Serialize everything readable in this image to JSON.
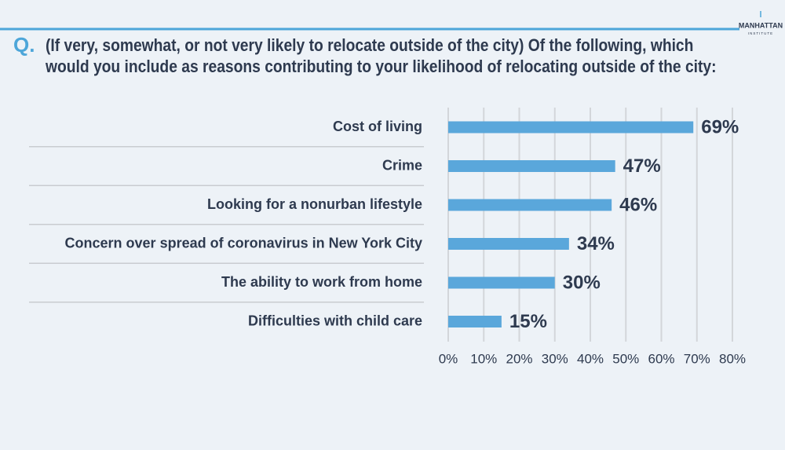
{
  "logo": {
    "name": "MANHATTAN",
    "subtitle": "INSTITUTE"
  },
  "chart_data": {
    "type": "hbar",
    "question_label": "Q.",
    "title": "(If very, somewhat, or not very likely to relocate outside of the city) Of the following, which would you include as reasons contributing to your likelihood of relocating outside of the city:",
    "categories": [
      "Cost of living",
      "Crime",
      "Looking for a nonurban lifestyle",
      "Concern over spread of coronavirus in New York City",
      "The ability to work from home",
      "Difficulties with child care"
    ],
    "values": [
      69,
      47,
      46,
      34,
      30,
      15
    ],
    "value_labels": [
      "69%",
      "47%",
      "46%",
      "34%",
      "30%",
      "15%"
    ],
    "color": "#5aa7db",
    "xlim": [
      0,
      80
    ],
    "xticks": [
      {
        "value": 0,
        "label": "0%"
      },
      {
        "value": 10,
        "label": "10%"
      },
      {
        "value": 20,
        "label": "20%"
      },
      {
        "value": 30,
        "label": "30%"
      },
      {
        "value": 40,
        "label": "40%"
      },
      {
        "value": 50,
        "label": "50%"
      },
      {
        "value": 60,
        "label": "60%"
      },
      {
        "value": 70,
        "label": "70%"
      },
      {
        "value": 80,
        "label": "80%"
      }
    ],
    "grid": true
  }
}
